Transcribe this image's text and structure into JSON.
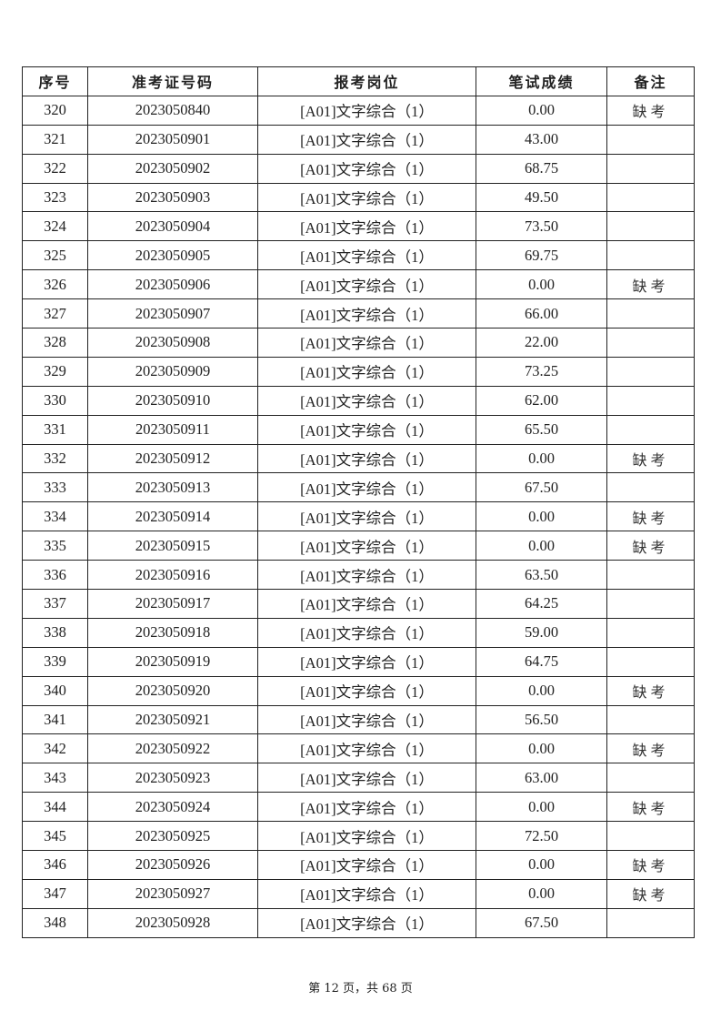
{
  "table": {
    "headers": [
      "序号",
      "准考证号码",
      "报考岗位",
      "笔试成绩",
      "备注"
    ],
    "rows": [
      [
        "320",
        "2023050840",
        "[A01]文字综合（1）",
        "0.00",
        "缺考"
      ],
      [
        "321",
        "2023050901",
        "[A01]文字综合（1）",
        "43.00",
        ""
      ],
      [
        "322",
        "2023050902",
        "[A01]文字综合（1）",
        "68.75",
        ""
      ],
      [
        "323",
        "2023050903",
        "[A01]文字综合（1）",
        "49.50",
        ""
      ],
      [
        "324",
        "2023050904",
        "[A01]文字综合（1）",
        "73.50",
        ""
      ],
      [
        "325",
        "2023050905",
        "[A01]文字综合（1）",
        "69.75",
        ""
      ],
      [
        "326",
        "2023050906",
        "[A01]文字综合（1）",
        "0.00",
        "缺考"
      ],
      [
        "327",
        "2023050907",
        "[A01]文字综合（1）",
        "66.00",
        ""
      ],
      [
        "328",
        "2023050908",
        "[A01]文字综合（1）",
        "22.00",
        ""
      ],
      [
        "329",
        "2023050909",
        "[A01]文字综合（1）",
        "73.25",
        ""
      ],
      [
        "330",
        "2023050910",
        "[A01]文字综合（1）",
        "62.00",
        ""
      ],
      [
        "331",
        "2023050911",
        "[A01]文字综合（1）",
        "65.50",
        ""
      ],
      [
        "332",
        "2023050912",
        "[A01]文字综合（1）",
        "0.00",
        "缺考"
      ],
      [
        "333",
        "2023050913",
        "[A01]文字综合（1）",
        "67.50",
        ""
      ],
      [
        "334",
        "2023050914",
        "[A01]文字综合（1）",
        "0.00",
        "缺考"
      ],
      [
        "335",
        "2023050915",
        "[A01]文字综合（1）",
        "0.00",
        "缺考"
      ],
      [
        "336",
        "2023050916",
        "[A01]文字综合（1）",
        "63.50",
        ""
      ],
      [
        "337",
        "2023050917",
        "[A01]文字综合（1）",
        "64.25",
        ""
      ],
      [
        "338",
        "2023050918",
        "[A01]文字综合（1）",
        "59.00",
        ""
      ],
      [
        "339",
        "2023050919",
        "[A01]文字综合（1）",
        "64.75",
        ""
      ],
      [
        "340",
        "2023050920",
        "[A01]文字综合（1）",
        "0.00",
        "缺考"
      ],
      [
        "341",
        "2023050921",
        "[A01]文字综合（1）",
        "56.50",
        ""
      ],
      [
        "342",
        "2023050922",
        "[A01]文字综合（1）",
        "0.00",
        "缺考"
      ],
      [
        "343",
        "2023050923",
        "[A01]文字综合（1）",
        "63.00",
        ""
      ],
      [
        "344",
        "2023050924",
        "[A01]文字综合（1）",
        "0.00",
        "缺考"
      ],
      [
        "345",
        "2023050925",
        "[A01]文字综合（1）",
        "72.50",
        ""
      ],
      [
        "346",
        "2023050926",
        "[A01]文字综合（1）",
        "0.00",
        "缺考"
      ],
      [
        "347",
        "2023050927",
        "[A01]文字综合（1）",
        "0.00",
        "缺考"
      ],
      [
        "348",
        "2023050928",
        "[A01]文字综合（1）",
        "67.50",
        ""
      ]
    ]
  },
  "footer": {
    "text": "第 12 页，共 68 页"
  }
}
